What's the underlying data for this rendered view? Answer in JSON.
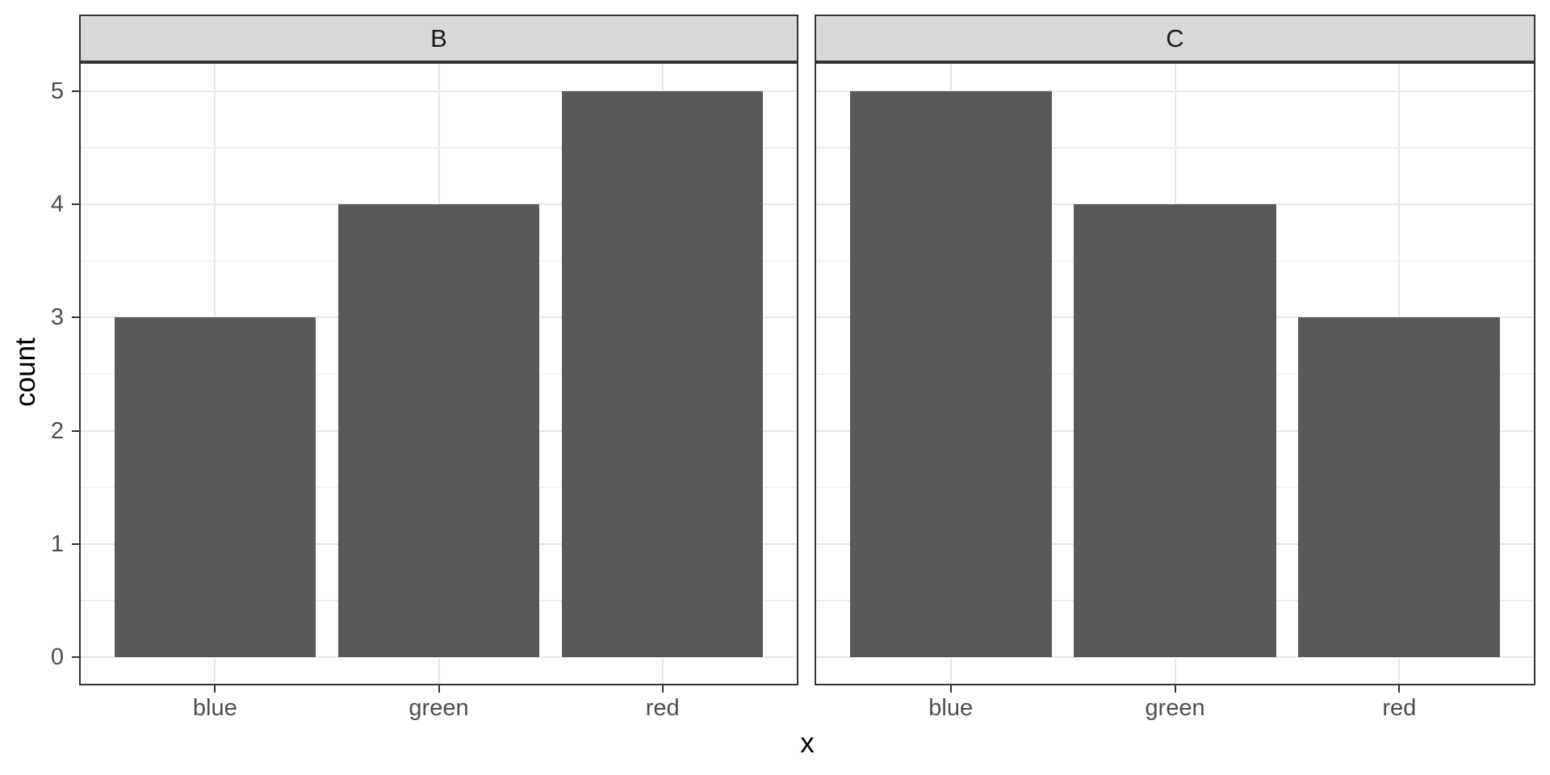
{
  "chart_data": {
    "type": "bar",
    "title": "",
    "xlabel": "x",
    "ylabel": "count",
    "categories": [
      "blue",
      "green",
      "red"
    ],
    "facets": [
      {
        "label": "B",
        "values": [
          3,
          4,
          5
        ]
      },
      {
        "label": "C",
        "values": [
          5,
          4,
          3
        ]
      }
    ],
    "y_ticks": [
      0,
      1,
      2,
      3,
      4,
      5
    ],
    "ylim": [
      -0.25,
      5.25
    ],
    "bar_width_fraction": 0.9,
    "grid": "major-and-minor-horizontal, major-vertical-at-categories",
    "legend_position": "none",
    "theme": "bw-faceted-strips"
  },
  "colors": {
    "bar_fill": "#595959",
    "strip_background": "#d9d9d9",
    "panel_border": "#333333",
    "grid_major": "#e6e6e6",
    "grid_minor": "#ededed",
    "tick_mark": "#333333",
    "tick_label": "#4d4d4d",
    "strip_label": "#1a1a1a",
    "axis_title": "#000000",
    "background": "#ffffff"
  }
}
